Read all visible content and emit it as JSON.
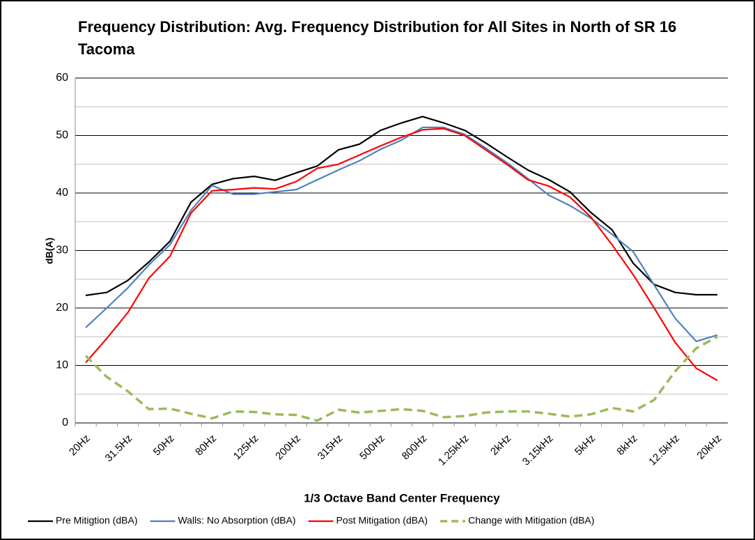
{
  "chart_data": {
    "type": "line",
    "title": "Frequency Distribution: Avg. Frequency Distribution for All Sites in North of SR 16 Tacoma",
    "x_label": "1/3 Octave Band Center Frequency",
    "y_label": "dB(A)",
    "categories": [
      "20Hz",
      null,
      "31.5Hz",
      null,
      "50Hz",
      null,
      "80Hz",
      null,
      "125Hz",
      null,
      "200Hz",
      null,
      "315Hz",
      null,
      "500Hz",
      null,
      "800Hz",
      null,
      "1.25kHz",
      null,
      "2kHz",
      null,
      "3.15kHz",
      null,
      "5kHz",
      null,
      "8kHz",
      null,
      "12.5kHz",
      null,
      "20kHz"
    ],
    "ylim": [
      0,
      60
    ],
    "yticks": [
      0,
      10,
      20,
      30,
      40,
      50,
      60
    ],
    "minor_yticks": [
      5,
      15,
      25,
      35,
      45,
      55
    ],
    "grid": true,
    "legend": "bottom",
    "series": [
      {
        "name": "Pre Mitigtion (dBA)",
        "color": "#000000",
        "dashed": false,
        "values": [
          22.2,
          22.7,
          24.8,
          28,
          31.6,
          38.4,
          41.5,
          42.5,
          42.9,
          42.2,
          43.5,
          44.7,
          47.5,
          48.5,
          50.9,
          52.2,
          53.3,
          52.2,
          50.9,
          48.7,
          46.3,
          44,
          42.3,
          40.2,
          36.6,
          33.6,
          27.8,
          24.1,
          22.7,
          22.3,
          22.3
        ]
      },
      {
        "name": "Walls: No Absorption (dBA)",
        "color": "#4f81bd",
        "dashed": false,
        "values": [
          16.6,
          20,
          23.5,
          27.5,
          31,
          37,
          41.3,
          39.8,
          39.8,
          40.2,
          40.6,
          42.3,
          44,
          45.6,
          47.6,
          49.2,
          51.4,
          51.4,
          50.2,
          47.8,
          45.3,
          42.5,
          39.6,
          37.8,
          35.6,
          32.8,
          29.8,
          24,
          18.2,
          14.2,
          15.3
        ]
      },
      {
        "name": "Post Mitigation (dBA)",
        "color": "#ff0000",
        "dashed": false,
        "values": [
          10.5,
          14.7,
          19.2,
          25.2,
          29,
          36.5,
          40.4,
          40.6,
          40.9,
          40.7,
          42,
          44.3,
          45,
          46.6,
          48.2,
          49.7,
          51,
          51.2,
          50,
          47.5,
          45,
          42.3,
          41.2,
          39.3,
          35.8,
          31,
          25.8,
          20,
          14,
          9.5,
          7.4
        ]
      },
      {
        "name": "Change with Mitigation (dBA)",
        "color": "#9bbb59",
        "dashed": true,
        "values": [
          11.7,
          8,
          5.5,
          2.4,
          2.5,
          1.6,
          0.8,
          2,
          1.9,
          1.5,
          1.4,
          0.4,
          2.3,
          1.8,
          2.1,
          2.4,
          2.1,
          1,
          1.2,
          1.8,
          2,
          2,
          1.6,
          1.1,
          1.5,
          2.6,
          2,
          4,
          9,
          13,
          15
        ]
      }
    ]
  }
}
